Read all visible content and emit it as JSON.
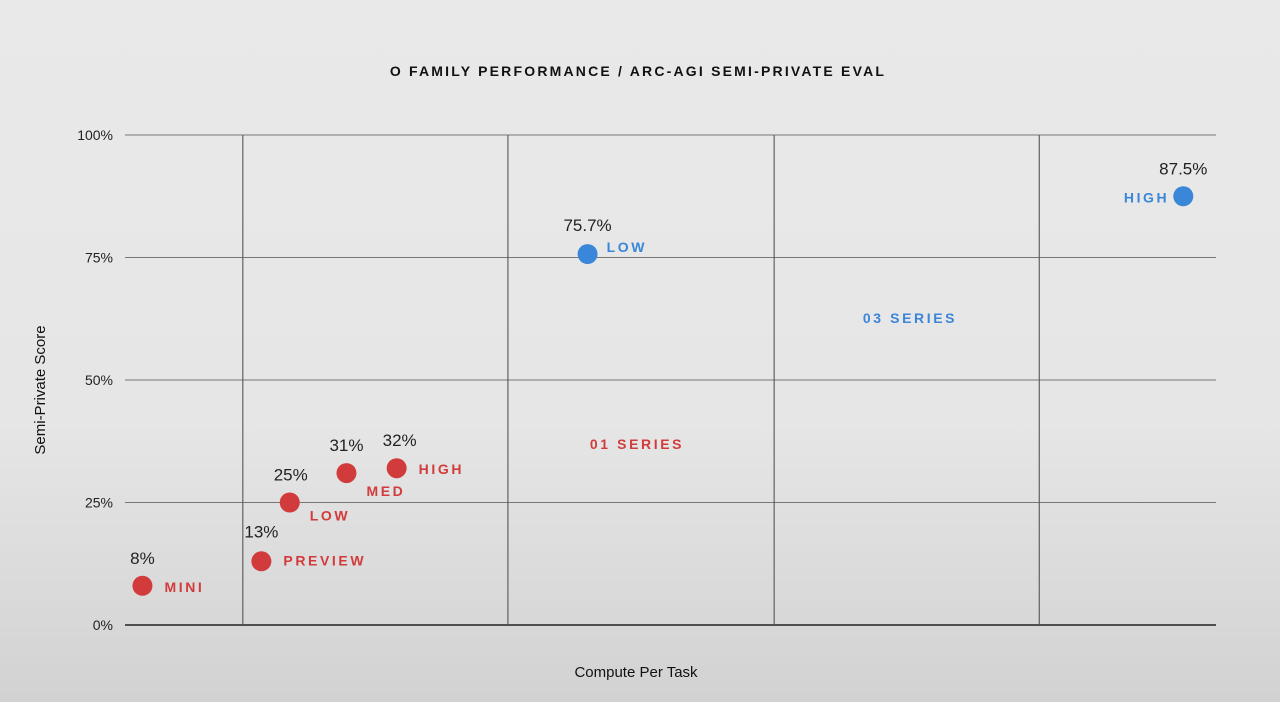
{
  "chart_data": {
    "type": "scatter",
    "title": "O FAMILY PERFORMANCE / ARC-AGI SEMI-PRIVATE EVAL",
    "xlabel": "Compute Per Task",
    "ylabel": "Semi-Private Score",
    "xlim": [
      0,
      100
    ],
    "ylim": [
      0,
      100
    ],
    "x_gridlines": [
      10.8,
      35.1,
      59.5,
      83.8
    ],
    "yticks": [
      0,
      25,
      50,
      75,
      100
    ],
    "ytick_labels": [
      "0%",
      "25%",
      "50%",
      "75%",
      "100%"
    ],
    "grid": true,
    "series": [
      {
        "name": "01 SERIES",
        "color": "#d23b3b",
        "points": [
          {
            "label": "MINI",
            "x": 1.6,
            "y": 8,
            "value_label": "8%"
          },
          {
            "label": "PREVIEW",
            "x": 12.5,
            "y": 13,
            "value_label": "13%"
          },
          {
            "label": "LOW",
            "x": 15.1,
            "y": 25,
            "value_label": "25%"
          },
          {
            "label": "MED",
            "x": 20.3,
            "y": 31,
            "value_label": "31%"
          },
          {
            "label": "HIGH",
            "x": 24.9,
            "y": 32,
            "value_label": "32%"
          }
        ]
      },
      {
        "name": "03 SERIES",
        "color": "#3a86d8",
        "points": [
          {
            "label": "LOW",
            "x": 42.4,
            "y": 75.7,
            "value_label": "75.7%"
          },
          {
            "label": "HIGH",
            "x": 97.0,
            "y": 87.5,
            "value_label": "87.5%"
          }
        ]
      }
    ]
  }
}
